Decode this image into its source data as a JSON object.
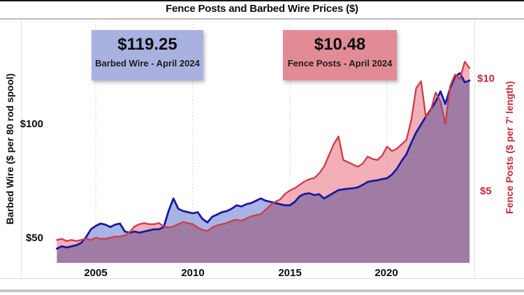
{
  "title": "Fence Posts and Barbed Wire Prices ($)",
  "callouts": {
    "barbed_wire": {
      "value": "$119.25",
      "label": "Barbed Wire - April 2024",
      "bg_color": "#a9b1e1"
    },
    "fence_posts": {
      "value": "$10.48",
      "label": "Fence Posts - April 2024",
      "bg_color": "#e28b96"
    }
  },
  "axes": {
    "left": {
      "title": "Barbed Wire ($ per 80 rod spool)",
      "tick_labels": [
        "$100",
        "$50"
      ],
      "color": "#0d0d0d"
    },
    "right": {
      "title": "Fence Posts ($ per 7' length)",
      "tick_labels": [
        "$10",
        "$5"
      ],
      "color": "#c22a3c"
    },
    "x": {
      "tick_labels": [
        "2005",
        "2010",
        "2015",
        "2020"
      ]
    }
  },
  "chart_data": {
    "type": "area",
    "title": "Fence Posts and Barbed Wire Prices ($)",
    "x_unit": "year (quarterly samples, 2003 through April 2024)",
    "x_start": 2003,
    "x_step": 0.25,
    "x_ticks": [
      2005,
      2010,
      2015,
      2020
    ],
    "grid": "vertical dotted lines at x ticks",
    "legend_position": "callout boxes at top",
    "left_axis": {
      "label": "Barbed Wire ($ per 80 rod spool)",
      "ticks": [
        50,
        100
      ]
    },
    "right_axis": {
      "label": "Fence Posts ($ per 7' length)",
      "ticks": [
        5,
        10
      ]
    },
    "series": [
      {
        "id": "barbed-wire",
        "name": "Barbed Wire",
        "axis": "left",
        "latest_label": "April 2024",
        "latest_value": 119.25,
        "line_color": "#1a1aa0",
        "fill_color": "#a9b3e4",
        "values": [
          45.5,
          46.5,
          46.0,
          46.5,
          47.0,
          48.0,
          50.5,
          54.0,
          55.5,
          56.5,
          56.0,
          55.0,
          56.0,
          56.5,
          53.0,
          52.5,
          53.0,
          52.5,
          53.0,
          53.5,
          54.0,
          54.0,
          55.0,
          62.0,
          67.5,
          63.0,
          62.0,
          61.5,
          61.0,
          61.5,
          58.5,
          57.0,
          59.5,
          60.5,
          61.5,
          62.0,
          63.0,
          64.5,
          64.0,
          65.0,
          65.5,
          66.5,
          67.5,
          66.5,
          66.0,
          65.5,
          65.0,
          64.5,
          64.5,
          66.0,
          68.5,
          69.5,
          69.8,
          69.0,
          69.4,
          67.5,
          68.7,
          70.0,
          71.2,
          71.5,
          71.8,
          72.0,
          72.4,
          73.5,
          74.8,
          75.2,
          75.5,
          76.0,
          76.4,
          78.0,
          80.5,
          84.0,
          87.0,
          92.0,
          96.5,
          100.0,
          103.5,
          106.5,
          110.0,
          114.5,
          109.0,
          116.0,
          121.0,
          122.5,
          118.5,
          119.25
        ]
      },
      {
        "id": "fence-posts",
        "name": "Fence Posts",
        "axis": "right",
        "latest_label": "April 2024",
        "latest_value": 10.48,
        "line_color": "#cf3b49",
        "fill_color": "#f2afb7",
        "values": [
          2.85,
          2.9,
          2.8,
          2.85,
          2.8,
          2.85,
          2.9,
          2.85,
          2.95,
          2.9,
          2.9,
          2.95,
          3.0,
          3.0,
          3.05,
          3.2,
          3.45,
          3.55,
          3.6,
          3.55,
          3.55,
          3.6,
          3.45,
          3.4,
          3.45,
          3.55,
          3.65,
          3.6,
          3.55,
          3.4,
          3.3,
          3.25,
          3.4,
          3.5,
          3.55,
          3.6,
          3.7,
          3.75,
          3.7,
          3.8,
          3.9,
          3.95,
          4.0,
          4.2,
          4.4,
          4.55,
          4.65,
          4.9,
          5.05,
          5.15,
          5.3,
          5.45,
          5.55,
          5.6,
          5.8,
          6.1,
          6.6,
          7.1,
          7.45,
          6.4,
          6.3,
          6.2,
          6.1,
          6.25,
          6.55,
          6.45,
          6.4,
          6.6,
          7.0,
          6.8,
          6.9,
          7.1,
          7.3,
          8.2,
          9.6,
          9.9,
          8.3,
          8.6,
          9.4,
          9.0,
          8.0,
          9.7,
          10.2,
          10.0,
          10.77,
          10.48
        ]
      }
    ]
  }
}
